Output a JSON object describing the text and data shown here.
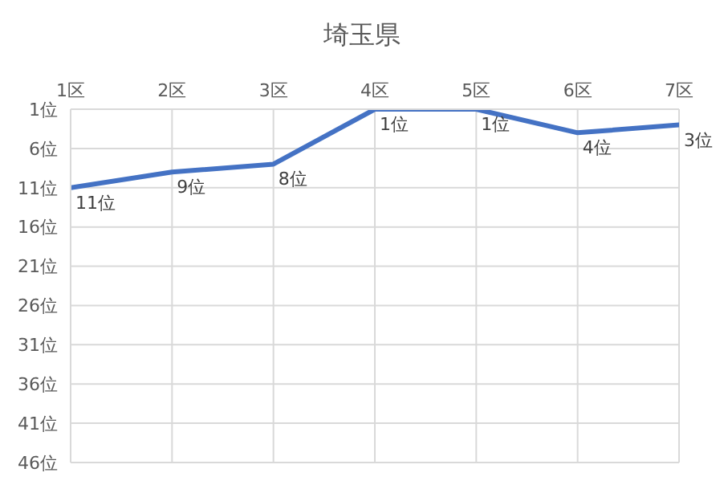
{
  "chart_data": {
    "type": "line",
    "title": "埼玉県",
    "categories": [
      "1区",
      "2区",
      "3区",
      "4区",
      "5区",
      "6区",
      "7区"
    ],
    "series": [
      {
        "color": "#4472c4",
        "values": [
          11,
          9,
          8,
          1,
          1,
          4,
          3
        ],
        "value_labels": [
          "11位",
          "9位",
          "8位",
          "1位",
          "1位",
          "4位",
          "3位"
        ]
      }
    ],
    "ylim": [
      46,
      1
    ],
    "yticks": [
      {
        "value": 1,
        "label": "1位"
      },
      {
        "value": 6,
        "label": "6位"
      },
      {
        "value": 11,
        "label": "11位"
      },
      {
        "value": 16,
        "label": "16位"
      },
      {
        "value": 21,
        "label": "21位"
      },
      {
        "value": 26,
        "label": "26位"
      },
      {
        "value": 31,
        "label": "31位"
      },
      {
        "value": 36,
        "label": "36位"
      },
      {
        "value": 41,
        "label": "41位"
      },
      {
        "value": 46,
        "label": "46位"
      }
    ],
    "grid": true,
    "marker": "none",
    "line_style": "solid"
  }
}
